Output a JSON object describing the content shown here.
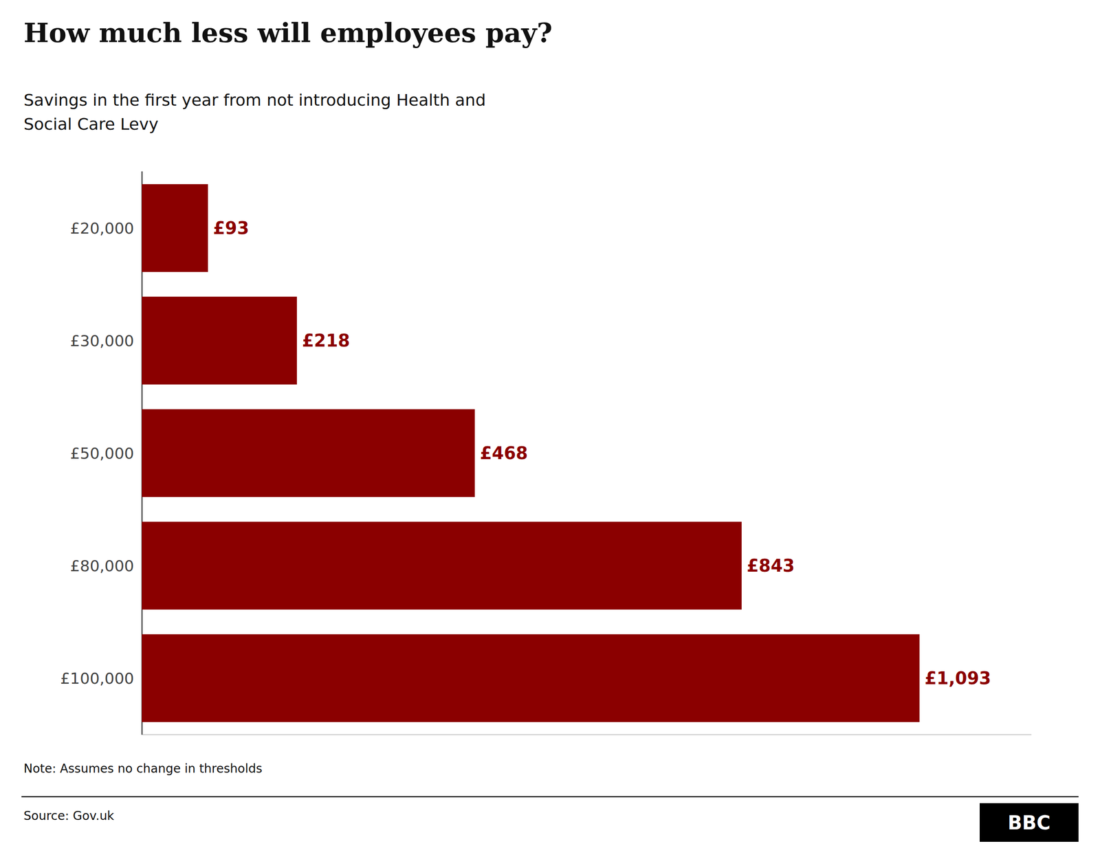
{
  "chart_data": {
    "type": "bar",
    "orientation": "horizontal",
    "title": "How much less will employees pay?",
    "subtitle": "Savings in the first year from not introducing Health and\nSocial Care Levy",
    "categories": [
      "£20,000",
      "£30,000",
      "£50,000",
      "£80,000",
      "£100,000"
    ],
    "values": [
      93,
      218,
      468,
      843,
      1093
    ],
    "value_labels": [
      "£93",
      "£218",
      "£468",
      "£843",
      "£1,093"
    ],
    "data_labels": true,
    "color": "#8B0000",
    "xlim": [
      0,
      1250
    ],
    "tick_labels": "y",
    "grid": false,
    "annotations": [
      "Note: Assumes no change in thresholds",
      "Source: Gov.uk",
      "BBC"
    ]
  }
}
